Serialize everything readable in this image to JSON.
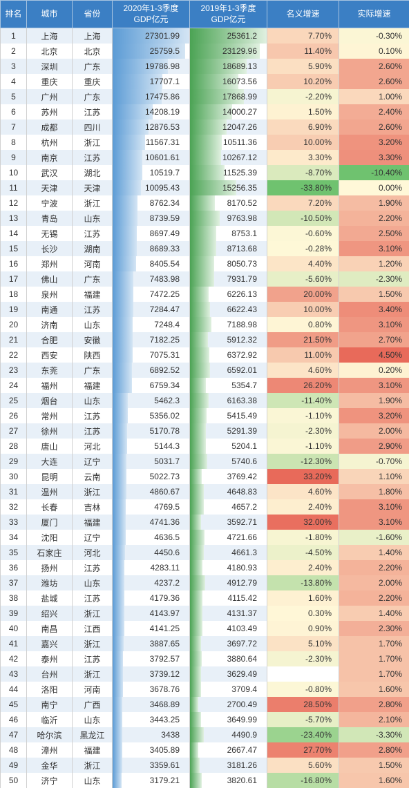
{
  "headers": {
    "rank": "排名",
    "city": "城市",
    "prov": "省份",
    "gdp2020": "2020年1-3季度\nGDP亿元",
    "gdp2019": "2019年1-3季度\nGDP亿元",
    "nominal": "名义增速",
    "real": "实际增速"
  },
  "bar2020": {
    "start": "#5b9bd5",
    "end": "#d4e5f4"
  },
  "bar2019": {
    "start": "#4ba354",
    "end": "#e0f0e0"
  },
  "max2020": 27301.99,
  "max2019": 25361.2,
  "nominal_scale": {
    "min": -33.8,
    "max": 33.2,
    "neg": "#6fc26f",
    "mid": "#fff8d8",
    "pos": "#e86a5a"
  },
  "real_scale": {
    "min": -10.4,
    "max": 4.5,
    "neg": "#6fc26f",
    "mid": "#fff8d8",
    "pos": "#e86a5a"
  },
  "rows": [
    {
      "rank": 1,
      "city": "上海",
      "prov": "上海",
      "g20": "27301.99",
      "g19": "25361.2",
      "nom": "7.70%",
      "real": "-0.30%",
      "nomv": 7.7,
      "realv": -0.3
    },
    {
      "rank": 2,
      "city": "北京",
      "prov": "北京",
      "g20": "25759.5",
      "g19": "23129.96",
      "nom": "11.40%",
      "real": "0.10%",
      "nomv": 11.4,
      "realv": 0.1
    },
    {
      "rank": 3,
      "city": "深圳",
      "prov": "广东",
      "g20": "19786.98",
      "g19": "18689.13",
      "nom": "5.90%",
      "real": "2.60%",
      "nomv": 5.9,
      "realv": 2.6
    },
    {
      "rank": 4,
      "city": "重庆",
      "prov": "重庆",
      "g20": "17707.1",
      "g19": "16073.56",
      "nom": "10.20%",
      "real": "2.60%",
      "nomv": 10.2,
      "realv": 2.6
    },
    {
      "rank": 5,
      "city": "广州",
      "prov": "广东",
      "g20": "17475.86",
      "g19": "17868.99",
      "nom": "-2.20%",
      "real": "1.00%",
      "nomv": -2.2,
      "realv": 1.0
    },
    {
      "rank": 6,
      "city": "苏州",
      "prov": "江苏",
      "g20": "14208.19",
      "g19": "14000.27",
      "nom": "1.50%",
      "real": "2.40%",
      "nomv": 1.5,
      "realv": 2.4
    },
    {
      "rank": 7,
      "city": "成都",
      "prov": "四川",
      "g20": "12876.53",
      "g19": "12047.26",
      "nom": "6.90%",
      "real": "2.60%",
      "nomv": 6.9,
      "realv": 2.6
    },
    {
      "rank": 8,
      "city": "杭州",
      "prov": "浙江",
      "g20": "11567.31",
      "g19": "10511.36",
      "nom": "10.00%",
      "real": "3.20%",
      "nomv": 10.0,
      "realv": 3.2
    },
    {
      "rank": 9,
      "city": "南京",
      "prov": "江苏",
      "g20": "10601.61",
      "g19": "10267.12",
      "nom": "3.30%",
      "real": "3.30%",
      "nomv": 3.3,
      "realv": 3.3
    },
    {
      "rank": 10,
      "city": "武汉",
      "prov": "湖北",
      "g20": "10519.7",
      "g19": "11525.39",
      "nom": "-8.70%",
      "real": "-10.40%",
      "nomv": -8.7,
      "realv": -10.4
    },
    {
      "rank": 11,
      "city": "天津",
      "prov": "天津",
      "g20": "10095.43",
      "g19": "15256.35",
      "nom": "-33.80%",
      "real": "0.00%",
      "nomv": -33.8,
      "realv": 0.0
    },
    {
      "rank": 12,
      "city": "宁波",
      "prov": "浙江",
      "g20": "8762.34",
      "g19": "8170.52",
      "nom": "7.20%",
      "real": "1.90%",
      "nomv": 7.2,
      "realv": 1.9
    },
    {
      "rank": 13,
      "city": "青岛",
      "prov": "山东",
      "g20": "8739.59",
      "g19": "9763.98",
      "nom": "-10.50%",
      "real": "2.20%",
      "nomv": -10.5,
      "realv": 2.2
    },
    {
      "rank": 14,
      "city": "无锡",
      "prov": "江苏",
      "g20": "8697.49",
      "g19": "8753.1",
      "nom": "-0.60%",
      "real": "2.50%",
      "nomv": -0.6,
      "realv": 2.5
    },
    {
      "rank": 15,
      "city": "长沙",
      "prov": "湖南",
      "g20": "8689.33",
      "g19": "8713.68",
      "nom": "-0.28%",
      "real": "3.10%",
      "nomv": -0.28,
      "realv": 3.1
    },
    {
      "rank": 16,
      "city": "郑州",
      "prov": "河南",
      "g20": "8405.54",
      "g19": "8050.73",
      "nom": "4.40%",
      "real": "1.20%",
      "nomv": 4.4,
      "realv": 1.2
    },
    {
      "rank": 17,
      "city": "佛山",
      "prov": "广东",
      "g20": "7483.98",
      "g19": "7931.79",
      "nom": "-5.60%",
      "real": "-2.30%",
      "nomv": -5.6,
      "realv": -2.3
    },
    {
      "rank": 18,
      "city": "泉州",
      "prov": "福建",
      "g20": "7472.25",
      "g19": "6226.13",
      "nom": "20.00%",
      "real": "1.50%",
      "nomv": 20.0,
      "realv": 1.5
    },
    {
      "rank": 19,
      "city": "南通",
      "prov": "江苏",
      "g20": "7284.47",
      "g19": "6622.43",
      "nom": "10.00%",
      "real": "3.40%",
      "nomv": 10.0,
      "realv": 3.4
    },
    {
      "rank": 20,
      "city": "济南",
      "prov": "山东",
      "g20": "7248.4",
      "g19": "7188.98",
      "nom": "0.80%",
      "real": "3.10%",
      "nomv": 0.8,
      "realv": 3.1
    },
    {
      "rank": 21,
      "city": "合肥",
      "prov": "安徽",
      "g20": "7182.25",
      "g19": "5912.32",
      "nom": "21.50%",
      "real": "2.70%",
      "nomv": 21.5,
      "realv": 2.7
    },
    {
      "rank": 22,
      "city": "西安",
      "prov": "陕西",
      "g20": "7075.31",
      "g19": "6372.92",
      "nom": "11.00%",
      "real": "4.50%",
      "nomv": 11.0,
      "realv": 4.5
    },
    {
      "rank": 23,
      "city": "东莞",
      "prov": "广东",
      "g20": "6892.52",
      "g19": "6592.01",
      "nom": "4.60%",
      "real": "0.20%",
      "nomv": 4.6,
      "realv": 0.2
    },
    {
      "rank": 24,
      "city": "福州",
      "prov": "福建",
      "g20": "6759.34",
      "g19": "5354.7",
      "nom": "26.20%",
      "real": "3.10%",
      "nomv": 26.2,
      "realv": 3.1
    },
    {
      "rank": 25,
      "city": "烟台",
      "prov": "山东",
      "g20": "5462.3",
      "g19": "6163.38",
      "nom": "-11.40%",
      "real": "1.90%",
      "nomv": -11.4,
      "realv": 1.9
    },
    {
      "rank": 26,
      "city": "常州",
      "prov": "江苏",
      "g20": "5356.02",
      "g19": "5415.49",
      "nom": "-1.10%",
      "real": "3.20%",
      "nomv": -1.1,
      "realv": 3.2
    },
    {
      "rank": 27,
      "city": "徐州",
      "prov": "江苏",
      "g20": "5170.78",
      "g19": "5291.39",
      "nom": "-2.30%",
      "real": "2.00%",
      "nomv": -2.3,
      "realv": 2.0
    },
    {
      "rank": 28,
      "city": "唐山",
      "prov": "河北",
      "g20": "5144.3",
      "g19": "5204.1",
      "nom": "-1.10%",
      "real": "2.90%",
      "nomv": -1.1,
      "realv": 2.9
    },
    {
      "rank": 29,
      "city": "大连",
      "prov": "辽宁",
      "g20": "5031.7",
      "g19": "5740.6",
      "nom": "-12.30%",
      "real": "-0.70%",
      "nomv": -12.3,
      "realv": -0.7
    },
    {
      "rank": 30,
      "city": "昆明",
      "prov": "云南",
      "g20": "5022.73",
      "g19": "3769.42",
      "nom": "33.20%",
      "real": "1.10%",
      "nomv": 33.2,
      "realv": 1.1
    },
    {
      "rank": 31,
      "city": "温州",
      "prov": "浙江",
      "g20": "4860.67",
      "g19": "4648.83",
      "nom": "4.60%",
      "real": "1.80%",
      "nomv": 4.6,
      "realv": 1.8
    },
    {
      "rank": 32,
      "city": "长春",
      "prov": "吉林",
      "g20": "4769.5",
      "g19": "4657.2",
      "nom": "2.40%",
      "real": "3.10%",
      "nomv": 2.4,
      "realv": 3.1
    },
    {
      "rank": 33,
      "city": "厦门",
      "prov": "福建",
      "g20": "4741.36",
      "g19": "3592.71",
      "nom": "32.00%",
      "real": "3.10%",
      "nomv": 32.0,
      "realv": 3.1
    },
    {
      "rank": 34,
      "city": "沈阳",
      "prov": "辽宁",
      "g20": "4636.5",
      "g19": "4721.66",
      "nom": "-1.80%",
      "real": "-1.60%",
      "nomv": -1.8,
      "realv": -1.6
    },
    {
      "rank": 35,
      "city": "石家庄",
      "prov": "河北",
      "g20": "4450.6",
      "g19": "4661.3",
      "nom": "-4.50%",
      "real": "1.40%",
      "nomv": -4.5,
      "realv": 1.4
    },
    {
      "rank": 36,
      "city": "扬州",
      "prov": "江苏",
      "g20": "4283.11",
      "g19": "4180.93",
      "nom": "2.40%",
      "real": "2.20%",
      "nomv": 2.4,
      "realv": 2.2
    },
    {
      "rank": 37,
      "city": "潍坊",
      "prov": "山东",
      "g20": "4237.2",
      "g19": "4912.79",
      "nom": "-13.80%",
      "real": "2.00%",
      "nomv": -13.8,
      "realv": 2.0
    },
    {
      "rank": 38,
      "city": "盐城",
      "prov": "江苏",
      "g20": "4179.36",
      "g19": "4115.42",
      "nom": "1.60%",
      "real": "2.20%",
      "nomv": 1.6,
      "realv": 2.2
    },
    {
      "rank": 39,
      "city": "绍兴",
      "prov": "浙江",
      "g20": "4143.97",
      "g19": "4131.37",
      "nom": "0.30%",
      "real": "1.40%",
      "nomv": 0.3,
      "realv": 1.4
    },
    {
      "rank": 40,
      "city": "南昌",
      "prov": "江西",
      "g20": "4141.25",
      "g19": "4103.49",
      "nom": "0.90%",
      "real": "2.30%",
      "nomv": 0.9,
      "realv": 2.3
    },
    {
      "rank": 41,
      "city": "嘉兴",
      "prov": "浙江",
      "g20": "3887.65",
      "g19": "3697.72",
      "nom": "5.10%",
      "real": "1.70%",
      "nomv": 5.1,
      "realv": 1.7
    },
    {
      "rank": 42,
      "city": "泰州",
      "prov": "江苏",
      "g20": "3792.57",
      "g19": "3880.64",
      "nom": "-2.30%",
      "real": "1.70%",
      "nomv": -2.3,
      "realv": 1.7
    },
    {
      "rank": 43,
      "city": "台州",
      "prov": "浙江",
      "g20": "3739.12",
      "g19": "3629.49",
      "nom": "",
      "real": "1.70%",
      "nomv": null,
      "realv": 1.7
    },
    {
      "rank": 44,
      "city": "洛阳",
      "prov": "河南",
      "g20": "3678.76",
      "g19": "3709.4",
      "nom": "-0.80%",
      "real": "1.60%",
      "nomv": -0.8,
      "realv": 1.6
    },
    {
      "rank": 45,
      "city": "南宁",
      "prov": "广西",
      "g20": "3468.89",
      "g19": "2700.49",
      "nom": "28.50%",
      "real": "2.80%",
      "nomv": 28.5,
      "realv": 2.8
    },
    {
      "rank": 46,
      "city": "临沂",
      "prov": "山东",
      "g20": "3443.25",
      "g19": "3649.99",
      "nom": "-5.70%",
      "real": "2.10%",
      "nomv": -5.7,
      "realv": 2.1
    },
    {
      "rank": 47,
      "city": "哈尔滨",
      "prov": "黑龙江",
      "g20": "3438",
      "g19": "4490.9",
      "nom": "-23.40%",
      "real": "-3.30%",
      "nomv": -23.4,
      "realv": -3.3
    },
    {
      "rank": 48,
      "city": "漳州",
      "prov": "福建",
      "g20": "3405.89",
      "g19": "2667.47",
      "nom": "27.70%",
      "real": "2.80%",
      "nomv": 27.7,
      "realv": 2.8
    },
    {
      "rank": 49,
      "city": "金华",
      "prov": "浙江",
      "g20": "3359.61",
      "g19": "3181.26",
      "nom": "5.60%",
      "real": "1.50%",
      "nomv": 5.6,
      "realv": 1.5
    },
    {
      "rank": 50,
      "city": "济宁",
      "prov": "山东",
      "g20": "3179.21",
      "g19": "3820.61",
      "nom": "-16.80%",
      "real": "1.60%",
      "nomv": -16.8,
      "realv": 1.6
    }
  ]
}
